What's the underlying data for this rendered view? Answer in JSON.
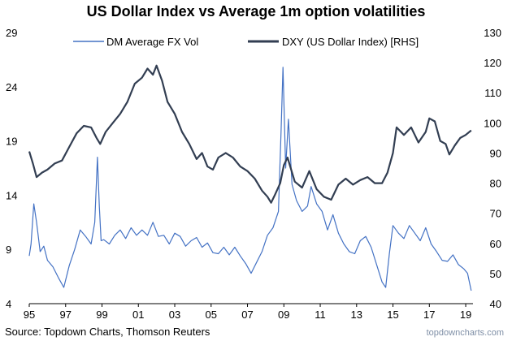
{
  "chart_data": {
    "type": "line",
    "title": "US Dollar Index vs Average 1m option volatilities",
    "xlabel": "",
    "ylabel_left": "",
    "ylabel_right": "",
    "x_range": [
      1995,
      2019.4
    ],
    "x_ticks": [
      1995,
      1997,
      1999,
      2001,
      2003,
      2005,
      2007,
      2009,
      2011,
      2013,
      2015,
      2017,
      2019
    ],
    "x_tick_labels": [
      "95",
      "97",
      "99",
      "01",
      "03",
      "05",
      "07",
      "09",
      "11",
      "13",
      "15",
      "17",
      "19"
    ],
    "ylim_left": [
      4,
      29
    ],
    "y_ticks_left": [
      4,
      9,
      14,
      19,
      24,
      29
    ],
    "ylim_right": [
      40,
      130
    ],
    "y_ticks_right": [
      40,
      50,
      60,
      70,
      80,
      90,
      100,
      110,
      120,
      130
    ],
    "grid": false,
    "legend_position": "top",
    "series": [
      {
        "name": "DM Average FX Vol",
        "axis": "left",
        "color": "#4472c4",
        "x": [
          1995.0,
          1995.1,
          1995.25,
          1995.4,
          1995.6,
          1995.8,
          1996.0,
          1996.3,
          1996.6,
          1996.9,
          1997.2,
          1997.5,
          1997.8,
          1998.1,
          1998.4,
          1998.6,
          1998.75,
          1998.85,
          1998.95,
          1999.1,
          1999.4,
          1999.7,
          2000.0,
          2000.3,
          2000.6,
          2000.9,
          2001.2,
          2001.5,
          2001.8,
          2002.1,
          2002.4,
          2002.7,
          2003.0,
          2003.3,
          2003.6,
          2003.9,
          2004.2,
          2004.5,
          2004.8,
          2005.1,
          2005.4,
          2005.7,
          2006.0,
          2006.3,
          2006.6,
          2006.9,
          2007.2,
          2007.5,
          2007.8,
          2008.1,
          2008.4,
          2008.7,
          2008.85,
          2008.95,
          2009.1,
          2009.25,
          2009.45,
          2009.7,
          2010.0,
          2010.3,
          2010.5,
          2010.8,
          2011.1,
          2011.4,
          2011.7,
          2012.0,
          2012.3,
          2012.6,
          2012.9,
          2013.2,
          2013.5,
          2013.8,
          2014.1,
          2014.4,
          2014.6,
          2014.8,
          2015.0,
          2015.3,
          2015.6,
          2015.9,
          2016.2,
          2016.5,
          2016.8,
          2017.1,
          2017.4,
          2017.7,
          2018.0,
          2018.3,
          2018.6,
          2018.9,
          2019.1,
          2019.3
        ],
        "values": [
          8.4,
          9.5,
          13.2,
          11.5,
          8.8,
          9.3,
          8.0,
          7.4,
          6.4,
          5.5,
          7.5,
          9.0,
          10.8,
          10.2,
          9.5,
          11.5,
          17.5,
          13.0,
          9.8,
          9.9,
          9.5,
          10.3,
          10.8,
          10.0,
          11.0,
          10.3,
          10.8,
          10.3,
          11.5,
          10.2,
          10.3,
          9.5,
          10.5,
          10.2,
          9.3,
          9.8,
          10.1,
          9.2,
          9.6,
          8.7,
          8.6,
          9.2,
          8.5,
          9.2,
          8.4,
          7.7,
          6.8,
          7.8,
          8.8,
          10.3,
          11.0,
          12.5,
          20.0,
          25.8,
          16.5,
          21.0,
          15.0,
          13.5,
          12.5,
          13.0,
          14.8,
          13.2,
          12.5,
          10.8,
          12.2,
          10.5,
          9.5,
          8.8,
          8.6,
          9.8,
          10.2,
          9.2,
          7.6,
          6.0,
          5.5,
          8.6,
          11.2,
          10.5,
          10.0,
          11.2,
          10.5,
          9.8,
          11.0,
          9.5,
          8.8,
          8.0,
          7.9,
          8.5,
          7.6,
          7.2,
          6.8,
          5.2
        ]
      },
      {
        "name": "DXY (US Dollar Index) [RHS]",
        "axis": "right",
        "color": "#323e52",
        "x": [
          1995.0,
          1995.2,
          1995.4,
          1995.7,
          1996.0,
          1996.4,
          1996.8,
          1997.2,
          1997.6,
          1998.0,
          1998.4,
          1998.7,
          1998.9,
          1999.2,
          1999.6,
          2000.0,
          2000.4,
          2000.8,
          2001.2,
          2001.5,
          2001.8,
          2002.0,
          2002.3,
          2002.6,
          2003.0,
          2003.4,
          2003.8,
          2004.2,
          2004.5,
          2004.8,
          2005.1,
          2005.4,
          2005.8,
          2006.2,
          2006.6,
          2007.0,
          2007.4,
          2007.8,
          2008.1,
          2008.3,
          2008.5,
          2008.8,
          2009.0,
          2009.2,
          2009.6,
          2010.0,
          2010.4,
          2010.8,
          2011.2,
          2011.6,
          2012.0,
          2012.4,
          2012.8,
          2013.2,
          2013.6,
          2014.0,
          2014.4,
          2014.7,
          2015.0,
          2015.2,
          2015.6,
          2016.0,
          2016.4,
          2016.8,
          2017.0,
          2017.3,
          2017.6,
          2017.9,
          2018.1,
          2018.4,
          2018.7,
          2019.0,
          2019.3
        ],
        "values": [
          90.5,
          86.5,
          82.0,
          83.5,
          84.5,
          86.5,
          87.5,
          92.0,
          96.5,
          99.0,
          98.5,
          95.0,
          93.0,
          97.0,
          100.0,
          103.0,
          107.0,
          113.0,
          115.0,
          118.0,
          116.0,
          119.0,
          114.0,
          107.0,
          103.0,
          97.0,
          93.0,
          88.0,
          90.0,
          85.5,
          84.5,
          88.5,
          90.0,
          88.5,
          85.5,
          84.0,
          81.5,
          77.5,
          75.5,
          73.5,
          76.0,
          80.0,
          86.0,
          88.5,
          80.5,
          78.5,
          84.0,
          78.0,
          75.5,
          74.5,
          79.5,
          81.5,
          79.5,
          81.0,
          82.0,
          80.0,
          80.0,
          83.5,
          90.0,
          98.5,
          96.0,
          98.5,
          93.5,
          97.0,
          101.5,
          100.5,
          94.0,
          93.0,
          89.5,
          92.5,
          95.0,
          96.0,
          97.5
        ]
      }
    ]
  },
  "footer": {
    "source": "Source: Topdown Charts, Thomson Reuters",
    "watermark": "topdowncharts.com"
  }
}
